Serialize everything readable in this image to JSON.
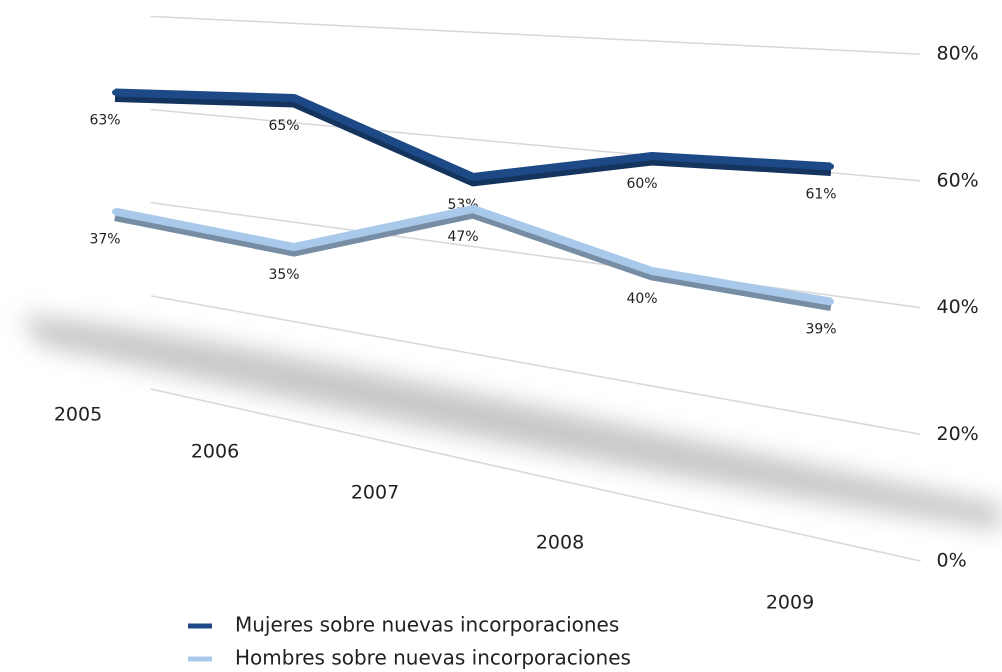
{
  "chart_data": {
    "type": "line",
    "categories": [
      "2005",
      "2006",
      "2007",
      "2008",
      "2009"
    ],
    "series": [
      {
        "name": "Mujeres sobre nuevas incorporaciones",
        "color": "#1d4a86",
        "values": [
          63,
          65,
          53,
          60,
          61
        ],
        "value_labels": [
          "63%",
          "65%",
          "53%",
          "60%",
          "61%"
        ]
      },
      {
        "name": "Hombres sobre nuevas incorporaciones",
        "color": "#a9c9ea",
        "values": [
          37,
          35,
          47,
          40,
          39
        ],
        "value_labels": [
          "37%",
          "35%",
          "47%",
          "40%",
          "39%"
        ]
      }
    ],
    "ylim": [
      0,
      80
    ],
    "yticks": [
      {
        "value": 0,
        "label": "0%"
      },
      {
        "value": 20,
        "label": "20%"
      },
      {
        "value": 40,
        "label": "40%"
      },
      {
        "value": 60,
        "label": "60%"
      },
      {
        "value": 80,
        "label": "80%"
      }
    ],
    "grid": true
  }
}
